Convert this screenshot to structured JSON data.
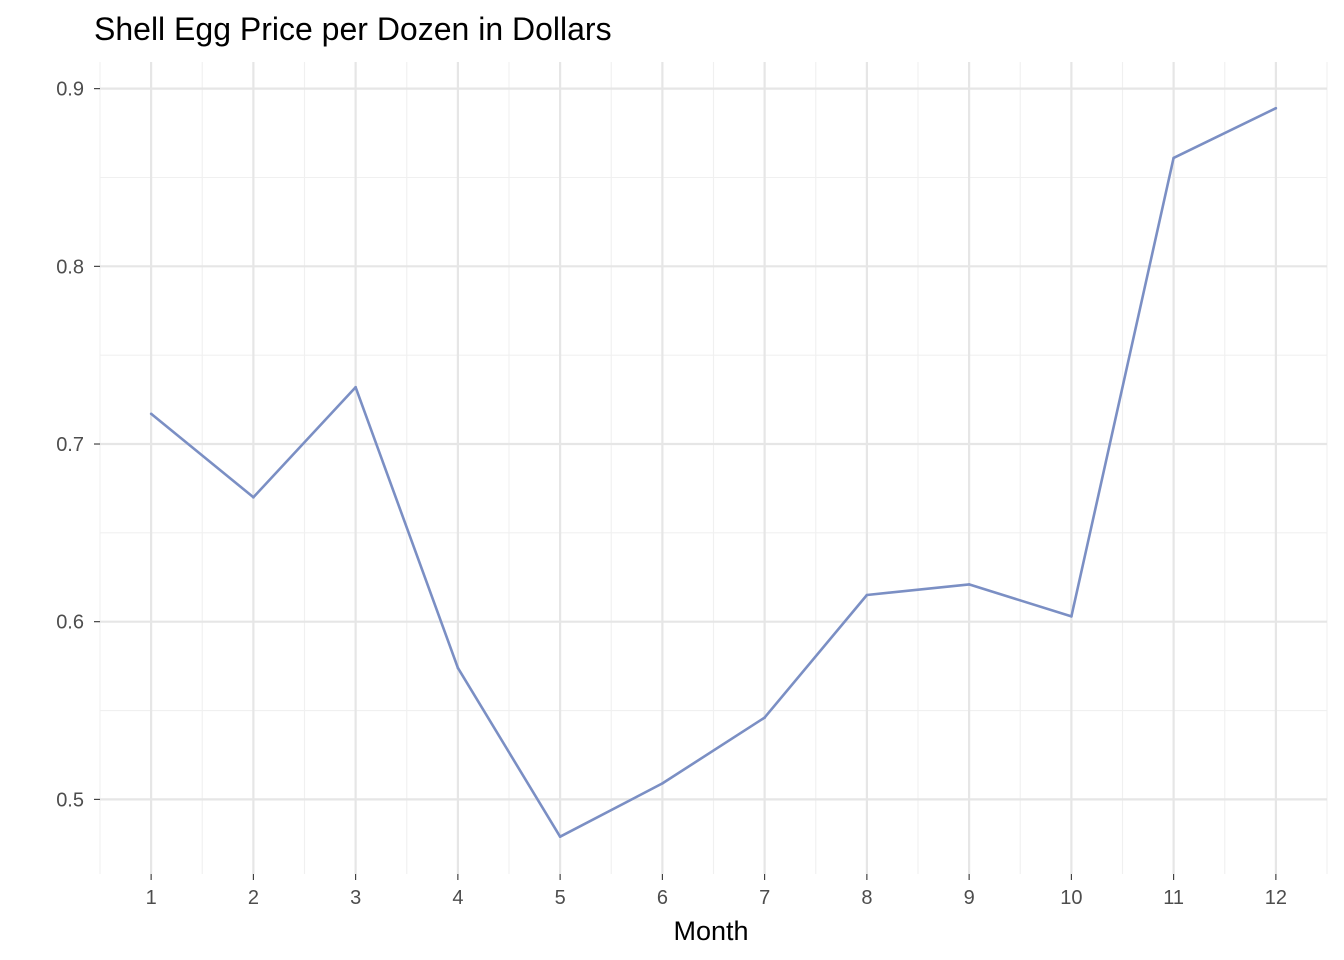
{
  "chart_data": {
    "type": "line",
    "title": "Shell Egg Price per Dozen in Dollars",
    "xlabel": "Month",
    "ylabel": "",
    "x": [
      1,
      2,
      3,
      4,
      5,
      6,
      7,
      8,
      9,
      10,
      11,
      12
    ],
    "x_tick_labels": [
      "1",
      "2",
      "3",
      "4",
      "5",
      "6",
      "7",
      "8",
      "9",
      "10",
      "11",
      "12"
    ],
    "y_ticks": [
      0.5,
      0.6,
      0.7,
      0.8,
      0.9
    ],
    "y_tick_labels": [
      "0.5",
      "0.6",
      "0.7",
      "0.8",
      "0.9"
    ],
    "xlim": [
      0.5,
      12.5
    ],
    "ylim": [
      0.458,
      0.915
    ],
    "grid": true,
    "series": [
      {
        "values": [
          0.717,
          0.67,
          0.732,
          0.574,
          0.479,
          0.509,
          0.546,
          0.615,
          0.621,
          0.603,
          0.861,
          0.889
        ],
        "color": "#7b8fc4"
      }
    ]
  }
}
